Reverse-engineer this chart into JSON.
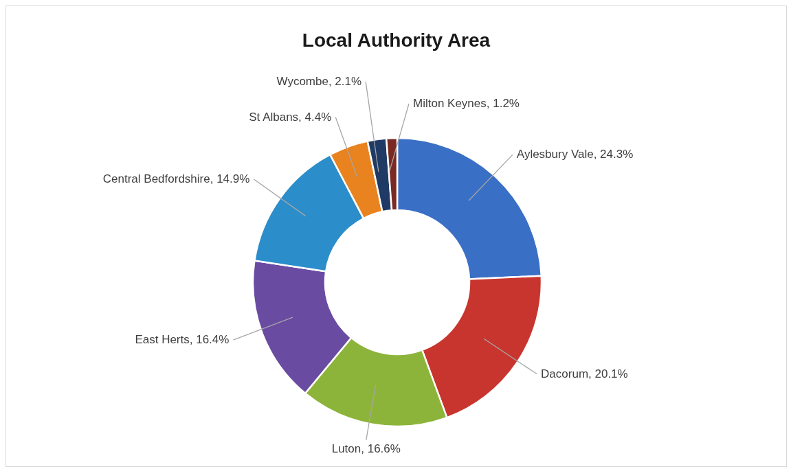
{
  "chart_data": {
    "type": "donut",
    "title": "Local Authority Area",
    "categories": [
      "Aylesbury Vale",
      "Dacorum",
      "Luton",
      "East Herts",
      "Central Bedfordshire",
      "St Albans",
      "Wycombe",
      "Milton Keynes"
    ],
    "values": [
      24.3,
      20.1,
      16.6,
      16.4,
      14.9,
      4.4,
      2.1,
      1.2
    ],
    "value_labels": [
      "24.3%",
      "20.1%",
      "16.6%",
      "16.4%",
      "14.9%",
      "4.4%",
      "2.1%",
      "1.2%"
    ],
    "colors": [
      "#3a6fc6",
      "#c8352e",
      "#8db43a",
      "#6a4ba2",
      "#2b8dc9",
      "#e8831f",
      "#1f3a64",
      "#7a2a22"
    ]
  }
}
